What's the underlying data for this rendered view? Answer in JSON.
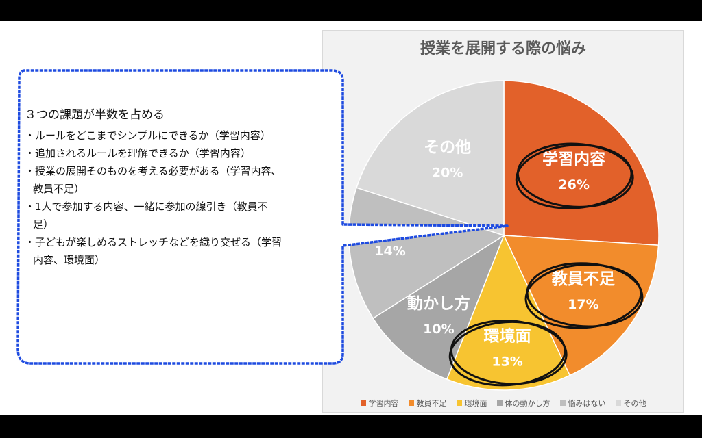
{
  "chart_data": {
    "type": "pie",
    "title": "授業を展開する際の悩み",
    "categories": [
      "学習内容",
      "教員不足",
      "環境面",
      "体の動かし方",
      "悩みはない",
      "その他"
    ],
    "values": [
      26,
      17,
      13,
      10,
      14,
      20
    ],
    "colors": [
      "#E2612A",
      "#F28C2C",
      "#F7C431",
      "#A6A6A6",
      "#BFBFBF",
      "#D9D9D9"
    ],
    "data_labels": [
      {
        "name": "学習内容",
        "percent": "26%"
      },
      {
        "name": "教員不足",
        "percent": "17%"
      },
      {
        "name": "環境面",
        "percent": "13%"
      },
      {
        "name": "動かし方",
        "percent": "10%"
      },
      {
        "name": "",
        "percent": "14%"
      },
      {
        "name": "その他",
        "percent": "20%"
      }
    ],
    "legend_position": "bottom"
  },
  "callout": {
    "heading": "３つの課題が半数を占める",
    "bullets": [
      [
        "・ルールをどこまでシンプルにできるか（学習内容）"
      ],
      [
        "・追加されるルールを理解できるか（学習内容）"
      ],
      [
        "・授業の展開そのものを考える必要がある（学習内容、",
        "教員不足）"
      ],
      [
        "・1人で参加する内容、一緒に参加の線引き（教員不",
        "足）"
      ],
      [
        "・子どもが楽しめるストレッチなどを織り交ぜる（学習",
        "内容、環境面）"
      ]
    ],
    "border_color": "#1E4BE0"
  },
  "highlight_color": "#111111"
}
